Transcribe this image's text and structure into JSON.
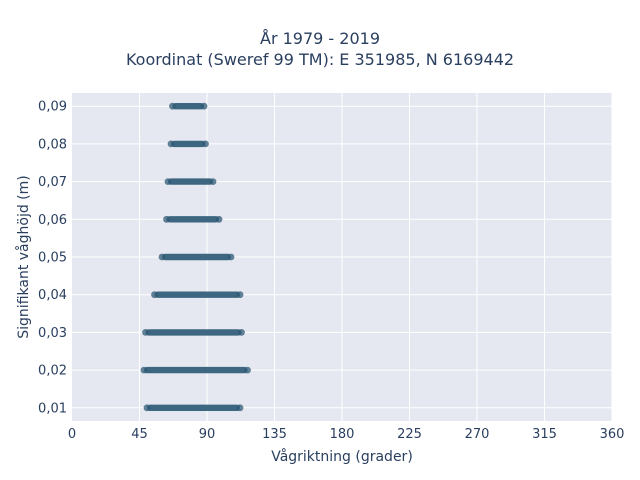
{
  "chart_data": {
    "type": "scatter",
    "title": [
      "År 1979 - 2019",
      "Koordinat (Sweref 99 TM): E 351985, N 6169442"
    ],
    "xlabel": "Vågriktning (grader)",
    "ylabel": "Signifikant våghöjd (m)",
    "xlim": [
      0,
      360
    ],
    "ylim": [
      0.0065,
      0.0935
    ],
    "xticks": [
      0,
      45,
      90,
      135,
      180,
      225,
      270,
      315,
      360
    ],
    "yticks": [
      0.01,
      0.02,
      0.03,
      0.04,
      0.05,
      0.06,
      0.07,
      0.08,
      0.09
    ],
    "yticklabels": [
      "0,01",
      "0,02",
      "0,03",
      "0,04",
      "0,05",
      "0,06",
      "0,07",
      "0,08",
      "0,09"
    ],
    "grid": true,
    "marker_color": "#2f5a76",
    "plot_background": "#e5e8f0",
    "series": [
      {
        "note": "points cluster in horizontal bands at each wave height; x range per band",
        "bands": [
          {
            "y": 0.01,
            "x_min": 50,
            "x_max": 112
          },
          {
            "y": 0.02,
            "x_min": 48,
            "x_max": 117
          },
          {
            "y": 0.03,
            "x_min": 49,
            "x_max": 113
          },
          {
            "y": 0.04,
            "x_min": 55,
            "x_max": 112
          },
          {
            "y": 0.05,
            "x_min": 60,
            "x_max": 106
          },
          {
            "y": 0.06,
            "x_min": 63,
            "x_max": 98
          },
          {
            "y": 0.07,
            "x_min": 64,
            "x_max": 94
          },
          {
            "y": 0.08,
            "x_min": 66,
            "x_max": 89
          },
          {
            "y": 0.09,
            "x_min": 67,
            "x_max": 88
          }
        ]
      }
    ]
  }
}
